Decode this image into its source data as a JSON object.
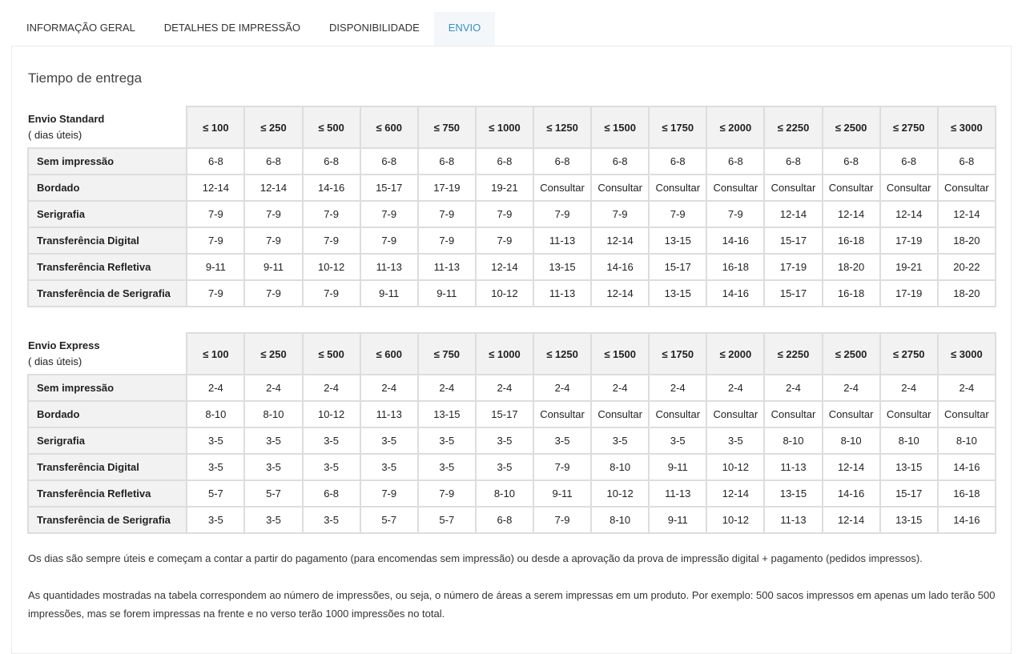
{
  "tabs": [
    {
      "label": "INFORMAÇÃO GERAL",
      "active": false
    },
    {
      "label": "DETALHES DE IMPRESSÃO",
      "active": false
    },
    {
      "label": "DISPONIBILIDADE",
      "active": false
    },
    {
      "label": "ENVIO",
      "active": true
    }
  ],
  "section_title": "Tiempo de entrega",
  "tables": [
    {
      "title": "Envio Standard",
      "subtitle": "( dias úteis)",
      "columns": [
        "≤ 100",
        "≤ 250",
        "≤ 500",
        "≤ 600",
        "≤ 750",
        "≤ 1000",
        "≤ 1250",
        "≤ 1500",
        "≤ 1750",
        "≤ 2000",
        "≤ 2250",
        "≤ 2500",
        "≤ 2750",
        "≤ 3000"
      ],
      "rows": [
        {
          "label": "Sem impressão",
          "cells": [
            "6-8",
            "6-8",
            "6-8",
            "6-8",
            "6-8",
            "6-8",
            "6-8",
            "6-8",
            "6-8",
            "6-8",
            "6-8",
            "6-8",
            "6-8",
            "6-8"
          ]
        },
        {
          "label": "Bordado",
          "cells": [
            "12-14",
            "12-14",
            "14-16",
            "15-17",
            "17-19",
            "19-21",
            "Consultar",
            "Consultar",
            "Consultar",
            "Consultar",
            "Consultar",
            "Consultar",
            "Consultar",
            "Consultar"
          ]
        },
        {
          "label": "Serigrafia",
          "cells": [
            "7-9",
            "7-9",
            "7-9",
            "7-9",
            "7-9",
            "7-9",
            "7-9",
            "7-9",
            "7-9",
            "7-9",
            "12-14",
            "12-14",
            "12-14",
            "12-14"
          ]
        },
        {
          "label": "Transferência Digital",
          "cells": [
            "7-9",
            "7-9",
            "7-9",
            "7-9",
            "7-9",
            "7-9",
            "11-13",
            "12-14",
            "13-15",
            "14-16",
            "15-17",
            "16-18",
            "17-19",
            "18-20"
          ]
        },
        {
          "label": "Transferência Refletiva",
          "cells": [
            "9-11",
            "9-11",
            "10-12",
            "11-13",
            "11-13",
            "12-14",
            "13-15",
            "14-16",
            "15-17",
            "16-18",
            "17-19",
            "18-20",
            "19-21",
            "20-22"
          ]
        },
        {
          "label": "Transferência de Serigrafia",
          "cells": [
            "7-9",
            "7-9",
            "7-9",
            "9-11",
            "9-11",
            "10-12",
            "11-13",
            "12-14",
            "13-15",
            "14-16",
            "15-17",
            "16-18",
            "17-19",
            "18-20"
          ]
        }
      ]
    },
    {
      "title": "Envio Express",
      "subtitle": "( dias úteis)",
      "columns": [
        "≤ 100",
        "≤ 250",
        "≤ 500",
        "≤ 600",
        "≤ 750",
        "≤ 1000",
        "≤ 1250",
        "≤ 1500",
        "≤ 1750",
        "≤ 2000",
        "≤ 2250",
        "≤ 2500",
        "≤ 2750",
        "≤ 3000"
      ],
      "rows": [
        {
          "label": "Sem impressão",
          "cells": [
            "2-4",
            "2-4",
            "2-4",
            "2-4",
            "2-4",
            "2-4",
            "2-4",
            "2-4",
            "2-4",
            "2-4",
            "2-4",
            "2-4",
            "2-4",
            "2-4"
          ]
        },
        {
          "label": "Bordado",
          "cells": [
            "8-10",
            "8-10",
            "10-12",
            "11-13",
            "13-15",
            "15-17",
            "Consultar",
            "Consultar",
            "Consultar",
            "Consultar",
            "Consultar",
            "Consultar",
            "Consultar",
            "Consultar"
          ]
        },
        {
          "label": "Serigrafia",
          "cells": [
            "3-5",
            "3-5",
            "3-5",
            "3-5",
            "3-5",
            "3-5",
            "3-5",
            "3-5",
            "3-5",
            "3-5",
            "8-10",
            "8-10",
            "8-10",
            "8-10"
          ]
        },
        {
          "label": "Transferência Digital",
          "cells": [
            "3-5",
            "3-5",
            "3-5",
            "3-5",
            "3-5",
            "3-5",
            "7-9",
            "8-10",
            "9-11",
            "10-12",
            "11-13",
            "12-14",
            "13-15",
            "14-16"
          ]
        },
        {
          "label": "Transferência Refletiva",
          "cells": [
            "5-7",
            "5-7",
            "6-8",
            "7-9",
            "7-9",
            "8-10",
            "9-11",
            "10-12",
            "11-13",
            "12-14",
            "13-15",
            "14-16",
            "15-17",
            "16-18"
          ]
        },
        {
          "label": "Transferência de Serigrafia",
          "cells": [
            "3-5",
            "3-5",
            "3-5",
            "5-7",
            "5-7",
            "6-8",
            "7-9",
            "8-10",
            "9-11",
            "10-12",
            "11-13",
            "12-14",
            "13-15",
            "14-16"
          ]
        }
      ]
    }
  ],
  "notes": [
    "Os dias são sempre úteis e começam a contar a partir do pagamento (para encomendas sem impressão) ou desde a aprovação da prova de impressão digital + pagamento (pedidos impressos).",
    "As quantidades mostradas na tabela correspondem ao número de impressões, ou seja, o número de áreas a serem impressas em um produto. Por exemplo: 500 sacos impressos em apenas um lado terão 500 impressões, mas se forem impressas na frente e no verso terão 1000 impressões no total."
  ]
}
